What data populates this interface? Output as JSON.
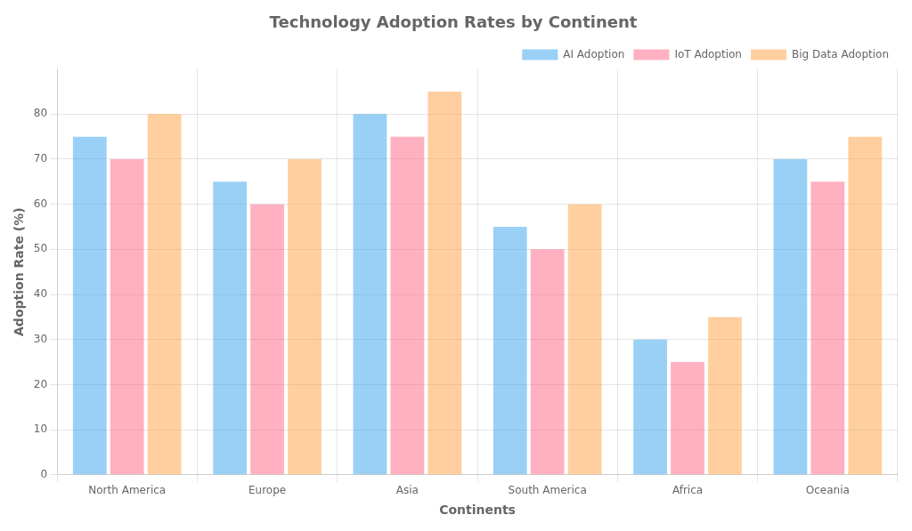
{
  "chart_data": {
    "type": "bar",
    "title": "Technology Adoption Rates by Continent",
    "xlabel": "Continents",
    "ylabel": "Adoption Rate (%)",
    "categories": [
      "North America",
      "Europe",
      "Asia",
      "South America",
      "Africa",
      "Oceania"
    ],
    "series": [
      {
        "name": "AI Adoption",
        "values": [
          75,
          65,
          80,
          55,
          30,
          70
        ]
      },
      {
        "name": "IoT Adoption",
        "values": [
          70,
          60,
          75,
          50,
          25,
          65
        ]
      },
      {
        "name": "Big Data Adoption",
        "values": [
          80,
          70,
          85,
          60,
          35,
          75
        ]
      }
    ],
    "ylim": [
      0,
      90
    ],
    "yticks": [
      0,
      10,
      20,
      30,
      40,
      50,
      60,
      70,
      80
    ],
    "grid": true,
    "legend": "upper right"
  }
}
